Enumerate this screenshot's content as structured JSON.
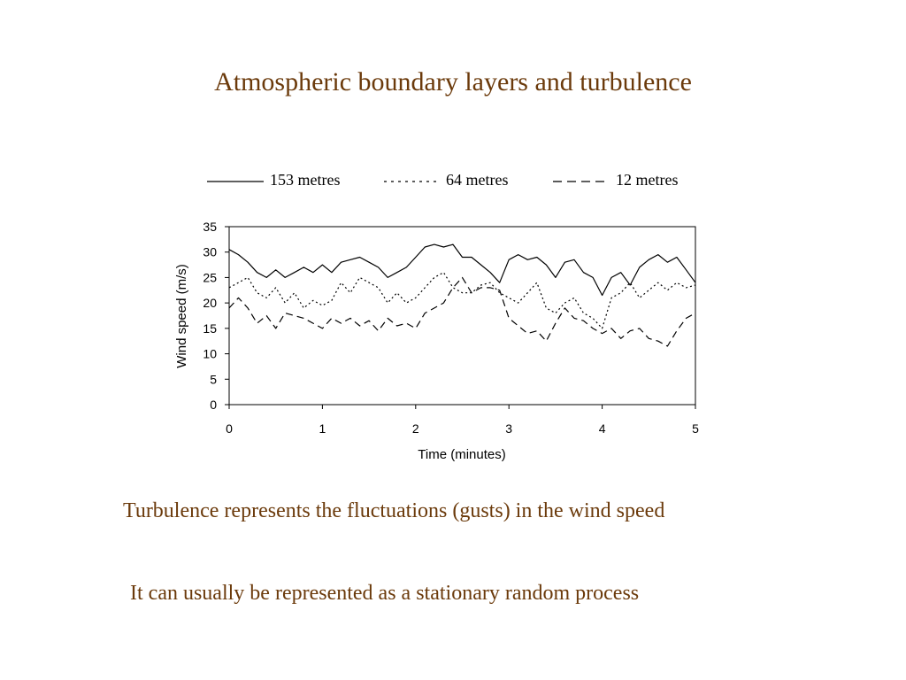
{
  "slide": {
    "title": "Atmospheric boundary layers and turbulence",
    "body_lines": [
      "Turbulence represents the fluctuations (gusts) in the wind speed",
      "It can usually be represented as a stationary random process"
    ]
  },
  "chart_data": {
    "type": "line",
    "xlabel": "Time (minutes)",
    "ylabel": "Wind speed (m/s)",
    "xlim": [
      0,
      5
    ],
    "ylim": [
      0,
      35
    ],
    "xticks": [
      "0",
      "1",
      "2",
      "3",
      "4",
      "5"
    ],
    "yticks": [
      "0",
      "5",
      "10",
      "15",
      "20",
      "25",
      "30",
      "35"
    ],
    "grid": false,
    "legend_position": "top",
    "series": [
      {
        "name": "153 metres",
        "style": "solid",
        "x": [
          0,
          0.1,
          0.2,
          0.3,
          0.4,
          0.5,
          0.6,
          0.7,
          0.8,
          0.9,
          1.0,
          1.1,
          1.2,
          1.3,
          1.4,
          1.5,
          1.6,
          1.7,
          1.8,
          1.9,
          2.0,
          2.1,
          2.2,
          2.3,
          2.4,
          2.5,
          2.6,
          2.7,
          2.8,
          2.9,
          3.0,
          3.1,
          3.2,
          3.3,
          3.4,
          3.5,
          3.6,
          3.7,
          3.8,
          3.9,
          4.0,
          4.1,
          4.2,
          4.3,
          4.4,
          4.5,
          4.6,
          4.7,
          4.8,
          4.9,
          5.0
        ],
        "y": [
          30.5,
          29.5,
          28,
          26,
          25,
          26.5,
          25,
          26,
          27,
          26,
          27.5,
          26,
          28,
          28.5,
          29,
          28,
          27,
          25,
          26,
          27,
          29,
          31,
          31.5,
          31,
          31.5,
          29,
          29,
          27.5,
          26,
          24,
          28.5,
          29.5,
          28.5,
          29,
          27.5,
          25,
          28,
          28.5,
          26,
          25,
          21.5,
          25,
          26,
          23.5,
          27,
          28.5,
          29.5,
          28,
          29,
          26.5,
          24
        ]
      },
      {
        "name": "64 metres",
        "style": "dotted",
        "x": [
          0,
          0.1,
          0.2,
          0.3,
          0.4,
          0.5,
          0.6,
          0.7,
          0.8,
          0.9,
          1.0,
          1.1,
          1.2,
          1.3,
          1.4,
          1.5,
          1.6,
          1.7,
          1.8,
          1.9,
          2.0,
          2.1,
          2.2,
          2.3,
          2.4,
          2.5,
          2.6,
          2.7,
          2.8,
          2.9,
          3.0,
          3.1,
          3.2,
          3.3,
          3.4,
          3.5,
          3.6,
          3.7,
          3.8,
          3.9,
          4.0,
          4.1,
          4.2,
          4.3,
          4.4,
          4.5,
          4.6,
          4.7,
          4.8,
          4.9,
          5.0
        ],
        "y": [
          23,
          24,
          25,
          22,
          21,
          23,
          20,
          22,
          19,
          20.5,
          19.5,
          20.5,
          24,
          22,
          25,
          24,
          23,
          20,
          22,
          20,
          21,
          23,
          25,
          26,
          23,
          22,
          22,
          23.5,
          24,
          22,
          21,
          20,
          22,
          24,
          19,
          18,
          20,
          21,
          18,
          17,
          15,
          21,
          22,
          24,
          21,
          22.5,
          24,
          22.5,
          24,
          23,
          23.5
        ]
      },
      {
        "name": "12 metres",
        "style": "dashed",
        "x": [
          0,
          0.1,
          0.2,
          0.3,
          0.4,
          0.5,
          0.6,
          0.7,
          0.8,
          0.9,
          1.0,
          1.1,
          1.2,
          1.3,
          1.4,
          1.5,
          1.6,
          1.7,
          1.8,
          1.9,
          2.0,
          2.1,
          2.2,
          2.3,
          2.4,
          2.5,
          2.6,
          2.7,
          2.8,
          2.9,
          3.0,
          3.1,
          3.2,
          3.3,
          3.4,
          3.5,
          3.6,
          3.7,
          3.8,
          3.9,
          4.0,
          4.1,
          4.2,
          4.3,
          4.4,
          4.5,
          4.6,
          4.7,
          4.8,
          4.9,
          5.0
        ],
        "y": [
          19,
          21,
          19,
          16,
          17.5,
          15,
          18,
          17.5,
          17,
          16,
          15,
          17,
          16,
          17,
          15.5,
          16.5,
          14.5,
          17,
          15.5,
          16,
          15,
          18,
          19,
          20,
          23,
          25,
          22,
          23,
          23,
          22.5,
          17,
          15.5,
          14,
          14.5,
          12.5,
          16,
          19,
          17,
          16.5,
          15,
          14,
          15,
          13,
          14.5,
          15,
          13,
          12.5,
          11.5,
          14.5,
          17,
          18
        ]
      }
    ]
  }
}
